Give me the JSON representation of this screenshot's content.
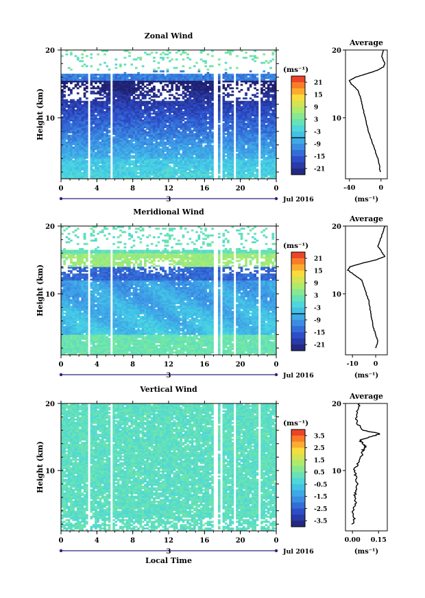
{
  "chart_data": [
    {
      "type": "heatmap",
      "title": "Zonal Wind",
      "xlabel": "",
      "ylabel": "Height (km)",
      "xlim": [
        0,
        24
      ],
      "ylim": [
        1,
        20
      ],
      "xticks": [
        "0",
        "4",
        "8",
        "12",
        "16",
        "20",
        "0"
      ],
      "yticks": [
        "20",
        "10"
      ],
      "date_label": "3",
      "month_label": "Jul 2016",
      "unit_label": "(ms⁻¹)",
      "colorbar_ticks": [
        "21",
        "15",
        "9",
        "3",
        "-3",
        "-9",
        "-15",
        "-21"
      ],
      "colorbar_range": [
        -24,
        24
      ],
      "avg_title": "Average",
      "avg_xticks": [
        "-40",
        "0"
      ],
      "avg_xlim": [
        -45,
        8
      ],
      "avg_unit": "(ms⁻¹)",
      "avg_profile": [
        [
          2,
          -1
        ],
        [
          3,
          -2
        ],
        [
          4,
          -4
        ],
        [
          5,
          -7
        ],
        [
          6,
          -10
        ],
        [
          7,
          -13
        ],
        [
          8,
          -16
        ],
        [
          9,
          -18
        ],
        [
          10,
          -20
        ],
        [
          11,
          -22
        ],
        [
          12,
          -24
        ],
        [
          13,
          -26
        ],
        [
          14,
          -29
        ],
        [
          14.5,
          -33
        ],
        [
          15,
          -38
        ],
        [
          15.5,
          -40
        ],
        [
          16,
          -32
        ],
        [
          16.5,
          -18
        ],
        [
          17,
          -5
        ],
        [
          17.5,
          3
        ],
        [
          18,
          5
        ],
        [
          19,
          1
        ],
        [
          20,
          3
        ]
      ]
    },
    {
      "type": "heatmap",
      "title": "Meridional Wind",
      "xlabel": "",
      "ylabel": "Height (km)",
      "xlim": [
        0,
        24
      ],
      "ylim": [
        1,
        20
      ],
      "xticks": [
        "0",
        "4",
        "8",
        "12",
        "16",
        "20",
        "0"
      ],
      "yticks": [
        "20",
        "10"
      ],
      "date_label": "3",
      "month_label": "Jul 2016",
      "unit_label": "(ms⁻¹)",
      "colorbar_ticks": [
        "21",
        "15",
        "9",
        "3",
        "-3",
        "-9",
        "-15",
        "-21"
      ],
      "colorbar_range": [
        -24,
        24
      ],
      "avg_title": "Average",
      "avg_xticks": [
        "-10",
        "0"
      ],
      "avg_xlim": [
        -13,
        5
      ],
      "avg_unit": "(ms⁻¹)",
      "avg_profile": [
        [
          2,
          0
        ],
        [
          3,
          1
        ],
        [
          4,
          0
        ],
        [
          5,
          -1
        ],
        [
          6,
          -1.5
        ],
        [
          7,
          -2
        ],
        [
          8,
          -2.5
        ],
        [
          9,
          -3
        ],
        [
          10,
          -4
        ],
        [
          11,
          -5
        ],
        [
          12,
          -6
        ],
        [
          12.5,
          -8
        ],
        [
          13,
          -10
        ],
        [
          13.5,
          -12
        ],
        [
          14,
          -11
        ],
        [
          14.5,
          -6
        ],
        [
          15,
          0
        ],
        [
          15.5,
          4
        ],
        [
          16,
          3
        ],
        [
          17,
          1
        ],
        [
          18,
          2
        ],
        [
          19,
          3
        ],
        [
          20,
          4
        ]
      ]
    },
    {
      "type": "heatmap",
      "title": "Vertical Wind",
      "xlabel": "Local Time",
      "ylabel": "Height (km)",
      "xlim": [
        0,
        24
      ],
      "ylim": [
        1,
        20
      ],
      "xticks": [
        "0",
        "4",
        "8",
        "12",
        "16",
        "20",
        "0"
      ],
      "yticks": [
        "20",
        "10"
      ],
      "date_label": "3",
      "month_label": "Jul 2016",
      "unit_label": "(ms⁻¹)",
      "colorbar_ticks": [
        "3.5",
        "2.5",
        "1.5",
        "0.5",
        "-0.5",
        "-1.5",
        "-2.5",
        "-3.5"
      ],
      "colorbar_range": [
        -4,
        4
      ],
      "avg_title": "Average",
      "avg_xticks": [
        "0.00",
        "0.15"
      ],
      "avg_xlim": [
        -0.04,
        0.2
      ],
      "avg_unit": "(ms⁻¹)",
      "avg_profile": [
        [
          2,
          0.0
        ],
        [
          3,
          0.01
        ],
        [
          4,
          0.0
        ],
        [
          5,
          0.02
        ],
        [
          6,
          0.01
        ],
        [
          7,
          0.02
        ],
        [
          8,
          0.03
        ],
        [
          9,
          0.02
        ],
        [
          10,
          0.01
        ],
        [
          11,
          0.03
        ],
        [
          12,
          0.05
        ],
        [
          13,
          0.06
        ],
        [
          13.5,
          0.08
        ],
        [
          14,
          0.06
        ],
        [
          14.5,
          0.04
        ],
        [
          15,
          0.1
        ],
        [
          15.5,
          0.16
        ],
        [
          16,
          0.06
        ],
        [
          17,
          0.03
        ],
        [
          18,
          0.02
        ],
        [
          19,
          0.03
        ],
        [
          20,
          0.04
        ]
      ]
    }
  ]
}
